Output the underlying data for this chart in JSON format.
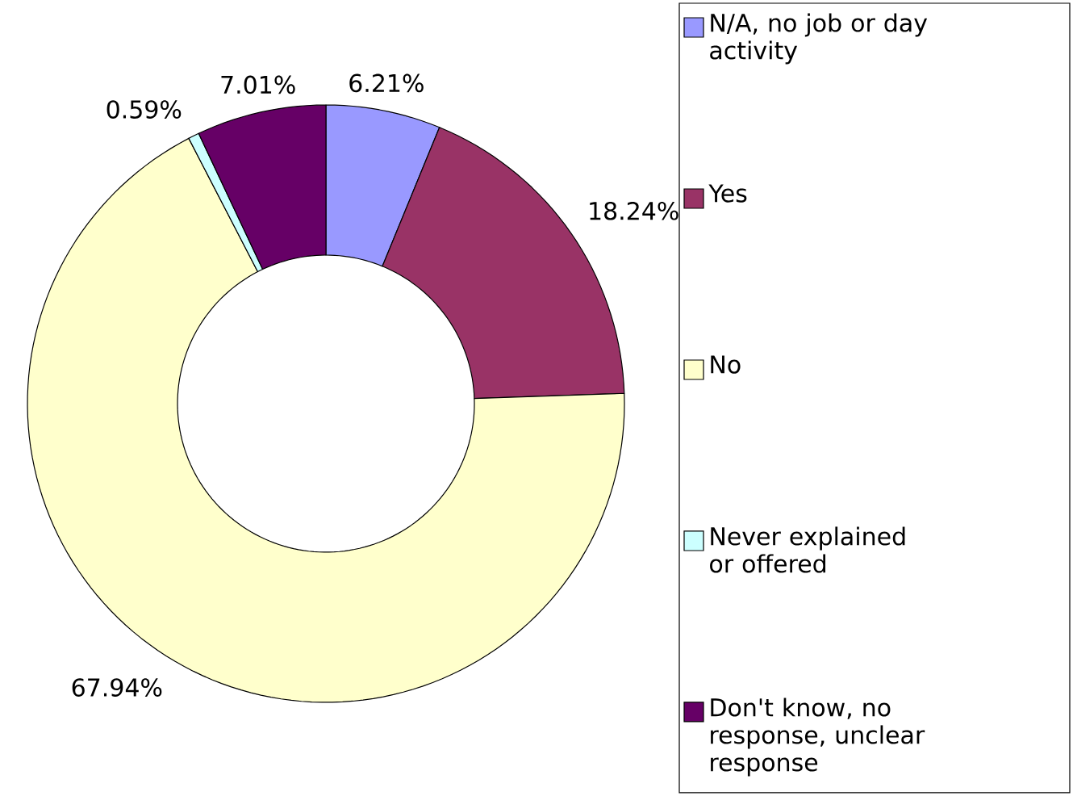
{
  "chart_data": {
    "type": "donut",
    "categories": [
      "N/A, no job or day activity",
      "Yes",
      "No",
      "Never explained or offered",
      "Don't know, no response, unclear response"
    ],
    "values": [
      6.21,
      18.24,
      67.94,
      0.59,
      7.01
    ],
    "colors": [
      "#9999ff",
      "#993366",
      "#ffffcc",
      "#ccffff",
      "#660066"
    ],
    "value_labels": [
      "6.21%",
      "18.24%",
      "67.94%",
      "0.59%",
      "7.01%"
    ],
    "legend": "right"
  }
}
